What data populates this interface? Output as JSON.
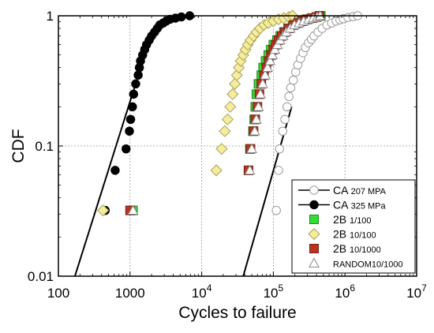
{
  "chart_data": {
    "type": "scatter",
    "xlabel": "Cycles to failure",
    "ylabel": "CDF",
    "xscale": "log",
    "yscale": "log",
    "xlim": [
      100,
      10000000
    ],
    "ylim": [
      0.01,
      1
    ],
    "grid": true,
    "legend_position": "bottom-right",
    "x_ticks": [
      {
        "value": 100,
        "label": "100"
      },
      {
        "value": 1000,
        "label": "1000"
      },
      {
        "value": 10000,
        "base": "10",
        "exp": "4"
      },
      {
        "value": 100000,
        "base": "10",
        "exp": "5"
      },
      {
        "value": 1000000,
        "base": "10",
        "exp": "6"
      },
      {
        "value": 10000000,
        "base": "10",
        "exp": "7"
      }
    ],
    "y_ticks": [
      {
        "value": 0.01,
        "label": "0.01"
      },
      {
        "value": 0.1,
        "label": "0.1"
      },
      {
        "value": 1,
        "label": "1"
      }
    ],
    "series": [
      {
        "legend_main": "CA",
        "legend_sub": "207 MPA",
        "marker": "circle-open",
        "fill": "#ffffff",
        "stroke": "#999999",
        "points": [
          [
            110000,
            0.032
          ],
          [
            118000,
            0.065
          ],
          [
            122000,
            0.095
          ],
          [
            135000,
            0.13
          ],
          [
            145000,
            0.16
          ],
          [
            155000,
            0.2
          ],
          [
            165000,
            0.24
          ],
          [
            175000,
            0.28
          ],
          [
            190000,
            0.32
          ],
          [
            205000,
            0.37
          ],
          [
            220000,
            0.42
          ],
          [
            240000,
            0.47
          ],
          [
            260000,
            0.52
          ],
          [
            280000,
            0.57
          ],
          [
            310000,
            0.62
          ],
          [
            340000,
            0.66
          ],
          [
            370000,
            0.7
          ],
          [
            420000,
            0.75
          ],
          [
            480000,
            0.8
          ],
          [
            560000,
            0.85
          ],
          [
            650000,
            0.88
          ],
          [
            750000,
            0.91
          ],
          [
            850000,
            0.93
          ],
          [
            950000,
            0.95
          ],
          [
            1100000,
            0.97
          ],
          [
            1300000,
            0.985
          ],
          [
            1500000,
            1.0
          ]
        ]
      },
      {
        "legend_main": "CA",
        "legend_sub": "325 MPa",
        "marker": "circle-filled",
        "fill": "#000000",
        "stroke": "#000000",
        "points": [
          [
            450,
            0.032
          ],
          [
            620,
            0.065
          ],
          [
            880,
            0.095
          ],
          [
            980,
            0.13
          ],
          [
            1020,
            0.16
          ],
          [
            1080,
            0.2
          ],
          [
            1120,
            0.25
          ],
          [
            1200,
            0.3
          ],
          [
            1300,
            0.35
          ],
          [
            1350,
            0.4
          ],
          [
            1400,
            0.45
          ],
          [
            1500,
            0.5
          ],
          [
            1600,
            0.55
          ],
          [
            1700,
            0.6
          ],
          [
            1850,
            0.65
          ],
          [
            2000,
            0.7
          ],
          [
            2200,
            0.75
          ],
          [
            2400,
            0.8
          ],
          [
            2600,
            0.85
          ],
          [
            2900,
            0.88
          ],
          [
            3200,
            0.91
          ],
          [
            3600,
            0.94
          ],
          [
            4300,
            0.96
          ],
          [
            5200,
            0.98
          ],
          [
            6800,
            1.0
          ]
        ]
      },
      {
        "legend_main": "2B",
        "legend_sub": "1/100",
        "marker": "square",
        "fill": "#33dd33",
        "stroke": "#228822",
        "points": [
          [
            1100,
            0.032
          ],
          [
            45000,
            0.065
          ],
          [
            47000,
            0.095
          ],
          [
            52000,
            0.13
          ],
          [
            54000,
            0.16
          ],
          [
            56000,
            0.2
          ],
          [
            58000,
            0.25
          ],
          [
            62000,
            0.3
          ],
          [
            68000,
            0.35
          ],
          [
            72000,
            0.4
          ],
          [
            78000,
            0.45
          ],
          [
            85000,
            0.5
          ],
          [
            92000,
            0.55
          ],
          [
            100000,
            0.6
          ],
          [
            112000,
            0.65
          ],
          [
            125000,
            0.7
          ],
          [
            140000,
            0.75
          ],
          [
            160000,
            0.8
          ],
          [
            185000,
            0.85
          ],
          [
            215000,
            0.88
          ],
          [
            250000,
            0.91
          ],
          [
            290000,
            0.94
          ],
          [
            340000,
            0.96
          ],
          [
            400000,
            0.98
          ],
          [
            460000,
            1.0
          ]
        ]
      },
      {
        "legend_main": "2B",
        "legend_sub": "10/100",
        "marker": "diamond",
        "fill": "#f4eda0",
        "stroke": "#aaa050",
        "points": [
          [
            420,
            0.032
          ],
          [
            16000,
            0.065
          ],
          [
            19000,
            0.095
          ],
          [
            21000,
            0.13
          ],
          [
            23000,
            0.16
          ],
          [
            25000,
            0.2
          ],
          [
            27000,
            0.25
          ],
          [
            29000,
            0.3
          ],
          [
            31000,
            0.35
          ],
          [
            33000,
            0.4
          ],
          [
            35000,
            0.45
          ],
          [
            38000,
            0.5
          ],
          [
            41000,
            0.55
          ],
          [
            44000,
            0.6
          ],
          [
            48000,
            0.65
          ],
          [
            53000,
            0.7
          ],
          [
            58000,
            0.75
          ],
          [
            65000,
            0.8
          ],
          [
            74000,
            0.85
          ],
          [
            85000,
            0.88
          ],
          [
            100000,
            0.91
          ],
          [
            118000,
            0.94
          ],
          [
            140000,
            0.96
          ],
          [
            165000,
            0.98
          ],
          [
            185000,
            1.0
          ]
        ]
      },
      {
        "legend_main": "2B",
        "legend_sub": "10/1000",
        "marker": "square",
        "fill": "#b83322",
        "stroke": "#7a1f14",
        "points": [
          [
            1000,
            0.032
          ],
          [
            45000,
            0.065
          ],
          [
            48000,
            0.095
          ],
          [
            53000,
            0.13
          ],
          [
            56000,
            0.16
          ],
          [
            60000,
            0.2
          ],
          [
            64000,
            0.25
          ],
          [
            68000,
            0.3
          ],
          [
            74000,
            0.35
          ],
          [
            80000,
            0.4
          ],
          [
            86000,
            0.45
          ],
          [
            93000,
            0.5
          ],
          [
            100000,
            0.55
          ],
          [
            108000,
            0.6
          ],
          [
            118000,
            0.65
          ],
          [
            130000,
            0.7
          ],
          [
            145000,
            0.75
          ],
          [
            165000,
            0.8
          ],
          [
            190000,
            0.85
          ],
          [
            220000,
            0.88
          ],
          [
            255000,
            0.91
          ],
          [
            300000,
            0.94
          ],
          [
            350000,
            0.96
          ],
          [
            400000,
            0.98
          ],
          [
            440000,
            1.0
          ]
        ]
      },
      {
        "legend_main": "",
        "legend_sub": "RANDOM10/1000",
        "marker": "triangle-open",
        "fill": "#ffffff",
        "stroke": "#888888",
        "points": [
          [
            1100,
            0.032
          ],
          [
            47000,
            0.065
          ],
          [
            50000,
            0.095
          ],
          [
            55000,
            0.13
          ],
          [
            58000,
            0.16
          ],
          [
            62000,
            0.2
          ],
          [
            66000,
            0.25
          ],
          [
            71000,
            0.3
          ],
          [
            77000,
            0.35
          ],
          [
            83000,
            0.4
          ],
          [
            90000,
            0.45
          ],
          [
            97000,
            0.5
          ],
          [
            105000,
            0.55
          ],
          [
            114000,
            0.6
          ],
          [
            124000,
            0.65
          ],
          [
            137000,
            0.7
          ],
          [
            152000,
            0.75
          ],
          [
            172000,
            0.8
          ],
          [
            197000,
            0.85
          ],
          [
            228000,
            0.88
          ],
          [
            265000,
            0.91
          ],
          [
            310000,
            0.94
          ],
          [
            360000,
            0.96
          ],
          [
            410000,
            0.98
          ],
          [
            450000,
            1.0
          ]
        ]
      }
    ],
    "fit_lines": [
      {
        "from": [
          170,
          0.01
        ],
        "to": [
          1150,
          0.28
        ]
      },
      {
        "from": [
          38000,
          0.01
        ],
        "to": [
          180000,
          0.2
        ]
      }
    ]
  }
}
